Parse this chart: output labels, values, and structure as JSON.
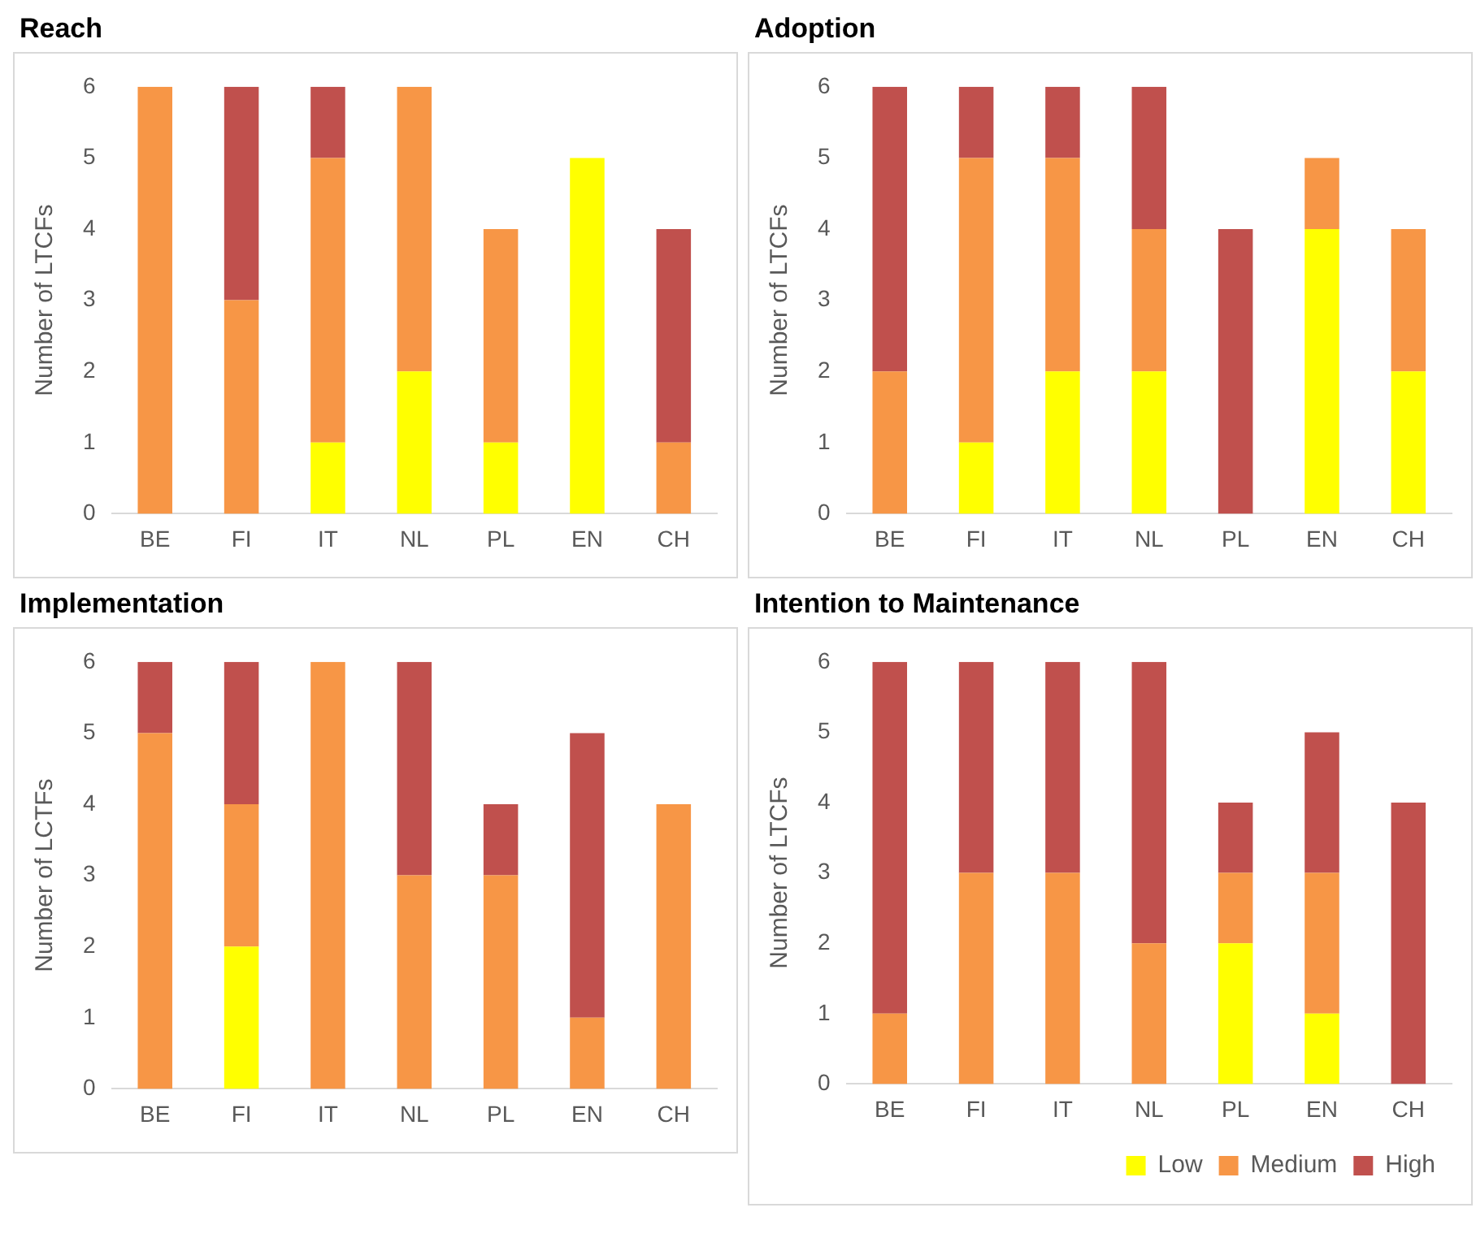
{
  "chart_data": [
    {
      "type": "bar",
      "title": "Reach",
      "ylabel": "Number of LTCFs",
      "categories": [
        "BE",
        "FI",
        "IT",
        "NL",
        "PL",
        "EN",
        "CH"
      ],
      "stacked": true,
      "ylim": [
        0,
        6
      ],
      "yticks": [
        0,
        1,
        2,
        3,
        4,
        5,
        6
      ],
      "grid": false,
      "legend": false,
      "series": [
        {
          "color": "#ffff00",
          "values": [
            0,
            0,
            1,
            2,
            1,
            5,
            0
          ]
        },
        {
          "color": "#f79646",
          "values": [
            6,
            3,
            4,
            4,
            3,
            0,
            1
          ]
        },
        {
          "color": "#c0504d",
          "values": [
            0,
            3,
            1,
            0,
            0,
            0,
            3
          ]
        }
      ]
    },
    {
      "type": "bar",
      "title": "Adoption",
      "ylabel": "Number of LTCFs",
      "categories": [
        "BE",
        "FI",
        "IT",
        "NL",
        "PL",
        "EN",
        "CH"
      ],
      "stacked": true,
      "ylim": [
        0,
        6
      ],
      "yticks": [
        0,
        1,
        2,
        3,
        4,
        5,
        6
      ],
      "grid": false,
      "legend": false,
      "series": [
        {
          "color": "#ffff00",
          "values": [
            0,
            1,
            2,
            2,
            0,
            4,
            2
          ]
        },
        {
          "color": "#f79646",
          "values": [
            2,
            4,
            3,
            2,
            0,
            1,
            2
          ]
        },
        {
          "color": "#c0504d",
          "values": [
            4,
            1,
            1,
            2,
            4,
            0,
            0
          ]
        }
      ]
    },
    {
      "type": "bar",
      "title": "Implementation",
      "ylabel": "Number of LCTFs",
      "categories": [
        "BE",
        "FI",
        "IT",
        "NL",
        "PL",
        "EN",
        "CH"
      ],
      "stacked": true,
      "ylim": [
        0,
        6
      ],
      "yticks": [
        0,
        1,
        2,
        3,
        4,
        5,
        6
      ],
      "grid": false,
      "legend": false,
      "series": [
        {
          "color": "#ffff00",
          "values": [
            0,
            2,
            0,
            0,
            0,
            0,
            0
          ]
        },
        {
          "color": "#f79646",
          "values": [
            5,
            2,
            6,
            3,
            3,
            1,
            4
          ]
        },
        {
          "color": "#c0504d",
          "values": [
            1,
            2,
            0,
            3,
            1,
            4,
            0
          ]
        }
      ]
    },
    {
      "type": "bar",
      "title": "Intention to Maintenance",
      "ylabel": "Number of LTCFs",
      "categories": [
        "BE",
        "FI",
        "IT",
        "NL",
        "PL",
        "EN",
        "CH"
      ],
      "stacked": true,
      "ylim": [
        0,
        6
      ],
      "yticks": [
        0,
        1,
        2,
        3,
        4,
        5,
        6
      ],
      "grid": false,
      "legend": "bottom right",
      "series": [
        {
          "name": "Low",
          "color": "#ffff00",
          "values": [
            0,
            0,
            0,
            0,
            2,
            1,
            0
          ]
        },
        {
          "name": "Medium",
          "color": "#f79646",
          "values": [
            1,
            3,
            3,
            2,
            1,
            2,
            0
          ]
        },
        {
          "name": "High",
          "color": "#c0504d",
          "values": [
            5,
            3,
            3,
            4,
            1,
            2,
            4
          ]
        }
      ]
    }
  ]
}
